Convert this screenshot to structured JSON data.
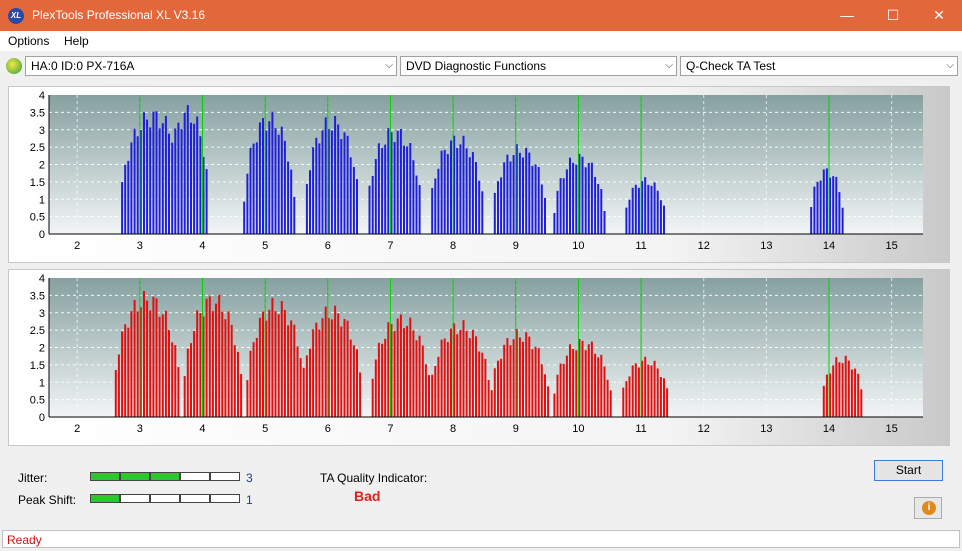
{
  "window": {
    "title": "PlexTools Professional XL V3.16",
    "icon_text": "XL",
    "minimize": "—",
    "maximize": "☐",
    "close": "✕"
  },
  "menu": {
    "items": [
      "Options",
      "Help"
    ]
  },
  "toolbar": {
    "drive": "HA:0 ID:0  PX-716A",
    "function": "DVD Diagnostic Functions",
    "test": "Q-Check TA Test",
    "arrow": "⌵"
  },
  "colors": {
    "titlebar": "#e2683c",
    "blue_bars": "#1f1fd8",
    "red_bars": "#e01010",
    "marker": "#00d000",
    "meter_on": "#2ec62e",
    "status": "#d01010"
  },
  "chart_data": [
    {
      "type": "bar",
      "name": "lands",
      "color": "#1f1fd8",
      "x_ticks": [
        "2",
        "3",
        "4",
        "5",
        "6",
        "7",
        "8",
        "9",
        "10",
        "11",
        "12",
        "13",
        "14",
        "15"
      ],
      "y_ticks": [
        "0",
        "0.5",
        "1",
        "1.5",
        "2",
        "2.5",
        "3",
        "3.5",
        "4"
      ],
      "xlim": [
        1.55,
        15.5
      ],
      "ylim": [
        0,
        4
      ],
      "markers": [
        3,
        4,
        5,
        6,
        7,
        8,
        9,
        10,
        11,
        14
      ],
      "peaks": [
        {
          "center": 3.2,
          "height": 3.65,
          "width": 0.55
        },
        {
          "center": 3.75,
          "height": 3.75,
          "width": 0.35
        },
        {
          "center": 5.05,
          "height": 3.55,
          "width": 0.42
        },
        {
          "center": 6.05,
          "height": 3.45,
          "width": 0.45
        },
        {
          "center": 7.05,
          "height": 3.15,
          "width": 0.45
        },
        {
          "center": 8.05,
          "height": 2.9,
          "width": 0.45
        },
        {
          "center": 9.05,
          "height": 2.6,
          "width": 0.45
        },
        {
          "center": 10.0,
          "height": 2.35,
          "width": 0.42
        },
        {
          "center": 11.05,
          "height": 1.65,
          "width": 0.35
        },
        {
          "center": 13.95,
          "height": 1.95,
          "width": 0.28
        }
      ]
    },
    {
      "type": "bar",
      "name": "pits",
      "color": "#e01010",
      "x_ticks": [
        "2",
        "3",
        "4",
        "5",
        "6",
        "7",
        "8",
        "9",
        "10",
        "11",
        "12",
        "13",
        "14",
        "15"
      ],
      "y_ticks": [
        "0",
        "0.5",
        "1",
        "1.5",
        "2",
        "2.5",
        "3",
        "3.5",
        "4"
      ],
      "xlim": [
        1.55,
        15.5
      ],
      "ylim": [
        0,
        4
      ],
      "markers": [
        3,
        4,
        5,
        6,
        7,
        8,
        9,
        10,
        11,
        14
      ],
      "peaks": [
        {
          "center": 3.1,
          "height": 3.65,
          "width": 0.55
        },
        {
          "center": 4.15,
          "height": 3.6,
          "width": 0.48
        },
        {
          "center": 5.15,
          "height": 3.45,
          "width": 0.48
        },
        {
          "center": 6.05,
          "height": 3.25,
          "width": 0.5
        },
        {
          "center": 7.15,
          "height": 3.0,
          "width": 0.5
        },
        {
          "center": 8.1,
          "height": 2.8,
          "width": 0.5
        },
        {
          "center": 9.05,
          "height": 2.55,
          "width": 0.48
        },
        {
          "center": 10.05,
          "height": 2.3,
          "width": 0.48
        },
        {
          "center": 11.05,
          "height": 1.75,
          "width": 0.4
        },
        {
          "center": 14.2,
          "height": 1.8,
          "width": 0.35
        }
      ]
    }
  ],
  "bottom": {
    "jitter_label": "Jitter:",
    "jitter_value": "3",
    "jitter_level": 3,
    "peak_label": "Peak Shift:",
    "peak_value": "1",
    "peak_level": 1,
    "meter_segments": 5,
    "quality_label": "TA Quality Indicator:",
    "quality_value": "Bad",
    "start_label": "Start",
    "info_icon": "i"
  },
  "status": {
    "text": "Ready"
  }
}
